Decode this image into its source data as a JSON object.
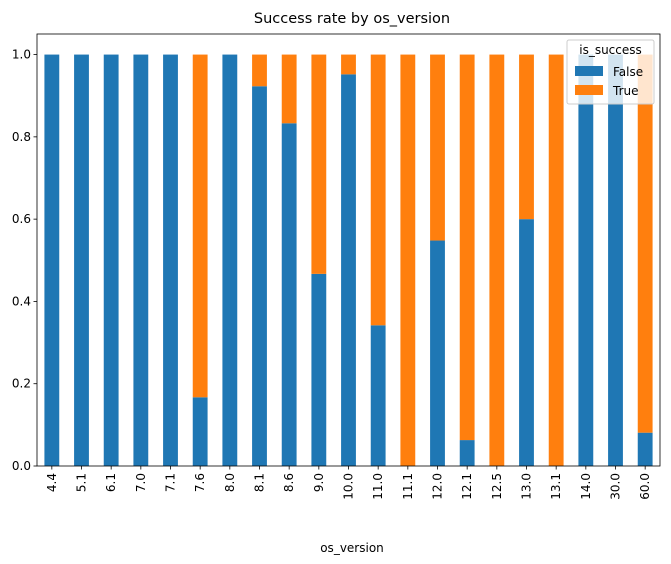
{
  "chart_data": {
    "type": "bar",
    "stacked": true,
    "title": "Success rate by os_version",
    "xlabel": "os_version",
    "ylabel": "",
    "ylim": [
      0,
      1.05
    ],
    "yticks": [
      0.0,
      0.2,
      0.4,
      0.6,
      0.8,
      1.0
    ],
    "ytick_labels": [
      "0.0",
      "0.2",
      "0.4",
      "0.6",
      "0.8",
      "1.0"
    ],
    "categories": [
      "4.4",
      "5.1",
      "6.1",
      "7.0",
      "7.1",
      "7.6",
      "8.0",
      "8.1",
      "8.6",
      "9.0",
      "10.0",
      "11.0",
      "11.1",
      "12.0",
      "12.1",
      "12.5",
      "13.0",
      "13.1",
      "14.0",
      "30.0",
      "60.0"
    ],
    "series": [
      {
        "name": "False",
        "color": "#1f77b4",
        "values": [
          1.0,
          1.0,
          1.0,
          1.0,
          1.0,
          0.167,
          1.0,
          0.923,
          0.833,
          0.467,
          0.952,
          0.342,
          0.0,
          0.548,
          0.063,
          0.0,
          0.6,
          0.0,
          1.0,
          1.0,
          0.081
        ]
      },
      {
        "name": "True",
        "color": "#ff7f0e",
        "values": [
          0.0,
          0.0,
          0.0,
          0.0,
          0.0,
          0.833,
          0.0,
          0.077,
          0.167,
          0.533,
          0.048,
          0.658,
          1.0,
          0.452,
          0.937,
          1.0,
          0.4,
          1.0,
          0.0,
          0.0,
          0.919
        ]
      }
    ],
    "legend": {
      "title": "is_success",
      "position": "top-right"
    },
    "grid": false
  }
}
